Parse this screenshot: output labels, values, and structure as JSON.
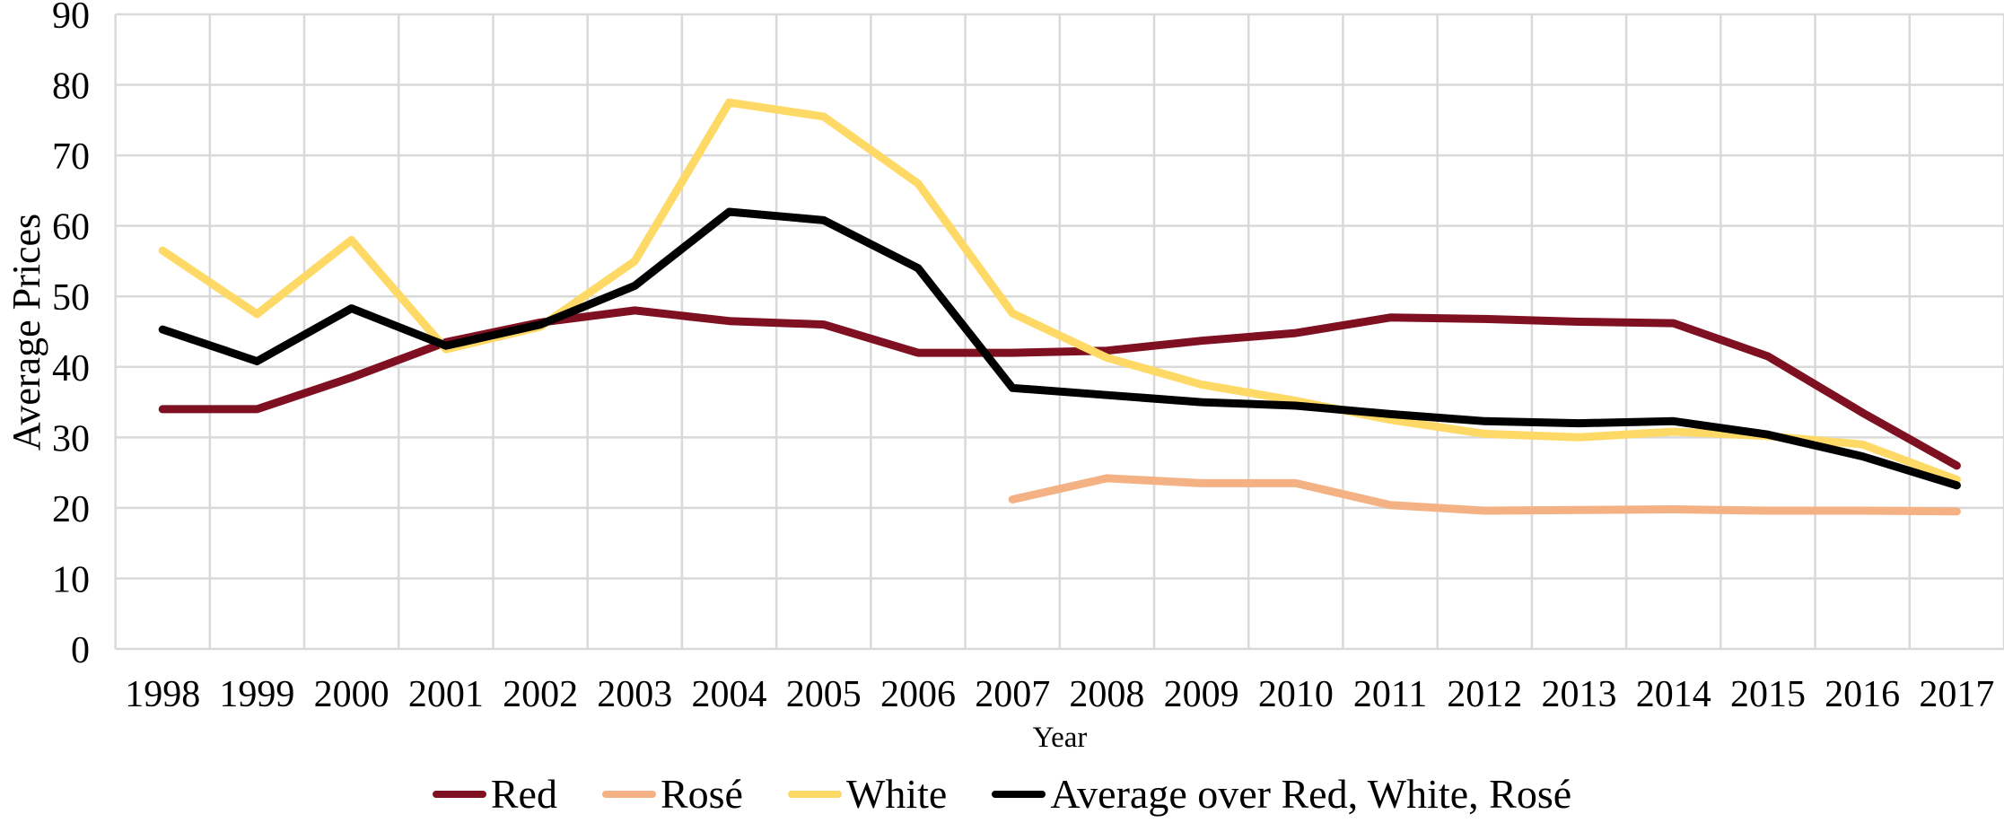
{
  "chart_data": {
    "type": "line",
    "title": "",
    "ylabel": "Average Prices",
    "xlabel": "Year",
    "x": [
      1998,
      1999,
      2000,
      2001,
      2002,
      2003,
      2004,
      2005,
      2006,
      2007,
      2008,
      2009,
      2010,
      2011,
      2012,
      2013,
      2014,
      2015,
      2016,
      2017
    ],
    "ylim": [
      0,
      90
    ],
    "yticks": [
      0,
      10,
      20,
      30,
      40,
      50,
      60,
      70,
      80,
      90
    ],
    "grid": true,
    "legend_position": "bottom",
    "series": [
      {
        "name": "Red",
        "color": "#7E1021",
        "values": [
          34,
          34,
          38.5,
          43.5,
          46.3,
          48,
          46.5,
          46,
          42,
          42,
          42.3,
          43.7,
          44.8,
          47,
          46.8,
          46.4,
          46.2,
          41.5,
          33.5,
          26
        ]
      },
      {
        "name": "Rosé",
        "color": "#F4B183",
        "values": [
          null,
          null,
          null,
          null,
          null,
          null,
          null,
          null,
          null,
          21.2,
          24.2,
          23.5,
          23.5,
          20.4,
          19.6,
          19.7,
          19.8,
          19.6,
          19.6,
          19.5
        ]
      },
      {
        "name": "White",
        "color": "#FFD966",
        "values": [
          56.5,
          47.5,
          58,
          42.5,
          45.7,
          55,
          77.5,
          75.5,
          66,
          47.6,
          41.3,
          37.5,
          35.2,
          32.5,
          30.5,
          30,
          30.8,
          30.2,
          29,
          24
        ]
      },
      {
        "name": "Average over Red, White, Rosé",
        "color": "#000000",
        "values": [
          45.3,
          40.8,
          48.3,
          43,
          46,
          51.5,
          62,
          60.8,
          54,
          37,
          36,
          35,
          34.5,
          33.3,
          32.3,
          32,
          32.3,
          30.4,
          27.3,
          23.2
        ]
      }
    ]
  },
  "colors": {
    "gridline": "#D9D9D9",
    "text": "#000000",
    "background": "#FFFFFF"
  }
}
